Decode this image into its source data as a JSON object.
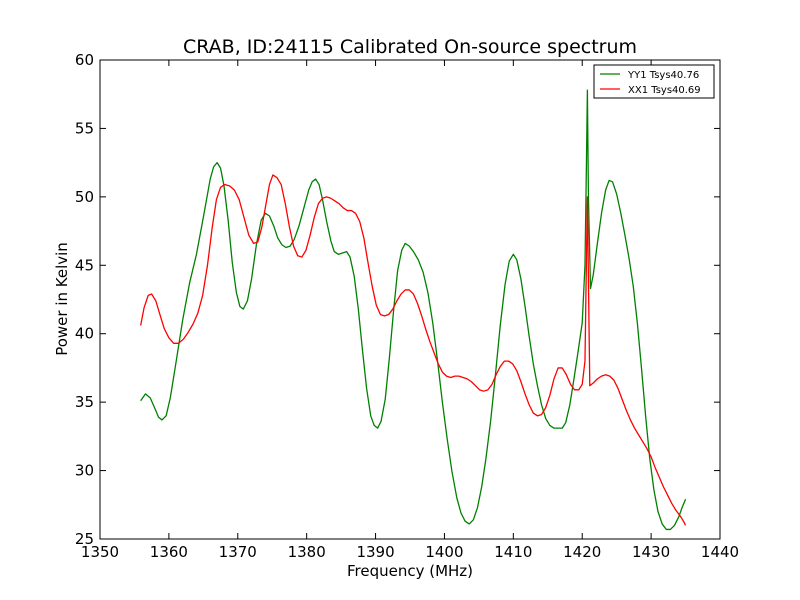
{
  "chart_data": {
    "type": "line",
    "title": "CRAB, ID:24115 Calibrated On-source spectrum",
    "xlabel": "Frequency (MHz)",
    "ylabel": "Power in Kelvin",
    "xlim": [
      1350,
      1440
    ],
    "ylim": [
      25,
      60
    ],
    "xticks": [
      "1350",
      "1360",
      "1370",
      "1380",
      "1390",
      "1400",
      "1410",
      "1420",
      "1430",
      "1440"
    ],
    "yticks": [
      "25",
      "30",
      "35",
      "40",
      "45",
      "50",
      "55",
      "60"
    ],
    "grid": false,
    "legend_position": "top-right",
    "series": [
      {
        "name": "YY1 Tsys40.76",
        "color": "#008000",
        "points": [
          [
            1355.9,
            35.1
          ],
          [
            1356.6,
            35.6
          ],
          [
            1357.3,
            35.3
          ],
          [
            1358.0,
            34.5
          ],
          [
            1358.5,
            33.9
          ],
          [
            1359.0,
            33.7
          ],
          [
            1359.6,
            34.0
          ],
          [
            1360.2,
            35.3
          ],
          [
            1361.0,
            37.8
          ],
          [
            1362.0,
            41.0
          ],
          [
            1363.0,
            43.7
          ],
          [
            1364.0,
            45.8
          ],
          [
            1365.0,
            48.5
          ],
          [
            1366.0,
            51.3
          ],
          [
            1366.5,
            52.2
          ],
          [
            1367.0,
            52.5
          ],
          [
            1367.5,
            52.1
          ],
          [
            1368.0,
            50.8
          ],
          [
            1368.6,
            48.3
          ],
          [
            1369.2,
            45.2
          ],
          [
            1369.8,
            43.0
          ],
          [
            1370.3,
            42.0
          ],
          [
            1370.8,
            41.8
          ],
          [
            1371.4,
            42.4
          ],
          [
            1372.0,
            44.0
          ],
          [
            1372.7,
            46.5
          ],
          [
            1373.4,
            48.3
          ],
          [
            1374.0,
            48.8
          ],
          [
            1374.6,
            48.6
          ],
          [
            1375.2,
            47.9
          ],
          [
            1375.8,
            47.0
          ],
          [
            1376.4,
            46.5
          ],
          [
            1377.0,
            46.3
          ],
          [
            1377.6,
            46.4
          ],
          [
            1378.2,
            46.9
          ],
          [
            1378.9,
            47.9
          ],
          [
            1379.6,
            49.2
          ],
          [
            1380.3,
            50.5
          ],
          [
            1380.8,
            51.1
          ],
          [
            1381.3,
            51.3
          ],
          [
            1381.8,
            50.9
          ],
          [
            1382.3,
            49.8
          ],
          [
            1382.9,
            48.2
          ],
          [
            1383.5,
            46.8
          ],
          [
            1384.0,
            46.0
          ],
          [
            1384.6,
            45.8
          ],
          [
            1385.2,
            45.9
          ],
          [
            1385.8,
            46.0
          ],
          [
            1386.3,
            45.6
          ],
          [
            1386.9,
            44.2
          ],
          [
            1387.5,
            41.8
          ],
          [
            1388.1,
            38.8
          ],
          [
            1388.7,
            36.0
          ],
          [
            1389.3,
            34.0
          ],
          [
            1389.8,
            33.3
          ],
          [
            1390.3,
            33.1
          ],
          [
            1390.8,
            33.6
          ],
          [
            1391.4,
            35.2
          ],
          [
            1392.0,
            38.2
          ],
          [
            1392.6,
            41.6
          ],
          [
            1393.2,
            44.6
          ],
          [
            1393.8,
            46.1
          ],
          [
            1394.3,
            46.6
          ],
          [
            1394.9,
            46.4
          ],
          [
            1395.5,
            46.0
          ],
          [
            1396.2,
            45.4
          ],
          [
            1396.9,
            44.5
          ],
          [
            1397.6,
            43.0
          ],
          [
            1398.3,
            40.8
          ],
          [
            1399.0,
            38.0
          ],
          [
            1399.7,
            35.0
          ],
          [
            1400.4,
            32.3
          ],
          [
            1401.1,
            29.9
          ],
          [
            1401.8,
            28.0
          ],
          [
            1402.4,
            26.9
          ],
          [
            1403.0,
            26.3
          ],
          [
            1403.6,
            26.1
          ],
          [
            1404.2,
            26.4
          ],
          [
            1404.8,
            27.3
          ],
          [
            1405.4,
            28.8
          ],
          [
            1406.0,
            30.8
          ],
          [
            1406.7,
            33.6
          ],
          [
            1407.4,
            37.0
          ],
          [
            1408.1,
            40.6
          ],
          [
            1408.8,
            43.6
          ],
          [
            1409.4,
            45.3
          ],
          [
            1410.0,
            45.8
          ],
          [
            1410.5,
            45.4
          ],
          [
            1411.1,
            44.0
          ],
          [
            1411.7,
            42.0
          ],
          [
            1412.3,
            39.8
          ],
          [
            1412.9,
            37.8
          ],
          [
            1413.5,
            36.2
          ],
          [
            1414.1,
            34.8
          ],
          [
            1414.7,
            33.8
          ],
          [
            1415.3,
            33.3
          ],
          [
            1415.9,
            33.1
          ],
          [
            1416.5,
            33.1
          ],
          [
            1417.1,
            33.1
          ],
          [
            1417.6,
            33.5
          ],
          [
            1418.2,
            34.8
          ],
          [
            1418.8,
            36.7
          ],
          [
            1419.4,
            38.7
          ],
          [
            1420.0,
            40.8
          ],
          [
            1420.4,
            45.0
          ],
          [
            1420.6,
            52.0
          ],
          [
            1420.75,
            57.8
          ],
          [
            1420.9,
            50.0
          ],
          [
            1421.2,
            43.3
          ],
          [
            1421.6,
            44.3
          ],
          [
            1422.2,
            46.6
          ],
          [
            1422.8,
            48.8
          ],
          [
            1423.4,
            50.5
          ],
          [
            1423.9,
            51.2
          ],
          [
            1424.4,
            51.1
          ],
          [
            1425.0,
            50.2
          ],
          [
            1425.6,
            48.8
          ],
          [
            1426.2,
            47.2
          ],
          [
            1426.8,
            45.5
          ],
          [
            1427.4,
            43.5
          ],
          [
            1428.0,
            40.8
          ],
          [
            1428.6,
            37.5
          ],
          [
            1429.2,
            34.0
          ],
          [
            1429.8,
            30.9
          ],
          [
            1430.4,
            28.6
          ],
          [
            1431.0,
            27.0
          ],
          [
            1431.6,
            26.1
          ],
          [
            1432.2,
            25.7
          ],
          [
            1432.8,
            25.7
          ],
          [
            1433.4,
            26.0
          ],
          [
            1434.0,
            26.6
          ],
          [
            1434.5,
            27.3
          ],
          [
            1435.0,
            27.9
          ]
        ]
      },
      {
        "name": "XX1 Tsys40.69",
        "color": "#ff0000",
        "points": [
          [
            1355.9,
            40.6
          ],
          [
            1356.4,
            41.9
          ],
          [
            1357.0,
            42.8
          ],
          [
            1357.5,
            42.9
          ],
          [
            1358.1,
            42.4
          ],
          [
            1358.7,
            41.4
          ],
          [
            1359.3,
            40.4
          ],
          [
            1360.0,
            39.7
          ],
          [
            1360.7,
            39.3
          ],
          [
            1361.4,
            39.3
          ],
          [
            1362.1,
            39.6
          ],
          [
            1362.8,
            40.1
          ],
          [
            1363.5,
            40.7
          ],
          [
            1364.2,
            41.5
          ],
          [
            1364.9,
            42.8
          ],
          [
            1365.6,
            45.0
          ],
          [
            1366.3,
            47.8
          ],
          [
            1366.9,
            49.8
          ],
          [
            1367.5,
            50.7
          ],
          [
            1368.1,
            50.9
          ],
          [
            1368.8,
            50.8
          ],
          [
            1369.5,
            50.5
          ],
          [
            1370.2,
            49.8
          ],
          [
            1370.9,
            48.5
          ],
          [
            1371.6,
            47.2
          ],
          [
            1372.3,
            46.6
          ],
          [
            1372.9,
            46.7
          ],
          [
            1373.5,
            47.8
          ],
          [
            1374.1,
            49.5
          ],
          [
            1374.6,
            50.9
          ],
          [
            1375.1,
            51.6
          ],
          [
            1375.7,
            51.4
          ],
          [
            1376.3,
            50.9
          ],
          [
            1376.9,
            49.5
          ],
          [
            1377.5,
            47.8
          ],
          [
            1378.1,
            46.4
          ],
          [
            1378.7,
            45.7
          ],
          [
            1379.3,
            45.6
          ],
          [
            1379.9,
            46.1
          ],
          [
            1380.5,
            47.2
          ],
          [
            1381.1,
            48.5
          ],
          [
            1381.7,
            49.5
          ],
          [
            1382.3,
            49.9
          ],
          [
            1382.9,
            50.0
          ],
          [
            1383.5,
            49.9
          ],
          [
            1384.1,
            49.7
          ],
          [
            1384.7,
            49.5
          ],
          [
            1385.3,
            49.2
          ],
          [
            1385.9,
            49.0
          ],
          [
            1386.5,
            49.0
          ],
          [
            1387.1,
            48.8
          ],
          [
            1387.7,
            48.2
          ],
          [
            1388.3,
            47.0
          ],
          [
            1388.9,
            45.2
          ],
          [
            1389.5,
            43.5
          ],
          [
            1390.1,
            42.1
          ],
          [
            1390.7,
            41.4
          ],
          [
            1391.3,
            41.3
          ],
          [
            1391.9,
            41.4
          ],
          [
            1392.5,
            41.8
          ],
          [
            1393.1,
            42.4
          ],
          [
            1393.7,
            42.9
          ],
          [
            1394.3,
            43.2
          ],
          [
            1394.9,
            43.2
          ],
          [
            1395.5,
            42.9
          ],
          [
            1396.1,
            42.2
          ],
          [
            1396.7,
            41.3
          ],
          [
            1397.3,
            40.3
          ],
          [
            1397.9,
            39.4
          ],
          [
            1398.5,
            38.6
          ],
          [
            1399.1,
            37.8
          ],
          [
            1399.7,
            37.2
          ],
          [
            1400.3,
            36.9
          ],
          [
            1400.9,
            36.8
          ],
          [
            1401.5,
            36.9
          ],
          [
            1402.1,
            36.9
          ],
          [
            1402.7,
            36.8
          ],
          [
            1403.3,
            36.7
          ],
          [
            1403.9,
            36.5
          ],
          [
            1404.5,
            36.2
          ],
          [
            1405.1,
            35.9
          ],
          [
            1405.7,
            35.8
          ],
          [
            1406.3,
            35.9
          ],
          [
            1406.9,
            36.3
          ],
          [
            1407.5,
            37.0
          ],
          [
            1408.1,
            37.6
          ],
          [
            1408.7,
            38.0
          ],
          [
            1409.3,
            38.0
          ],
          [
            1409.9,
            37.8
          ],
          [
            1410.5,
            37.3
          ],
          [
            1411.1,
            36.5
          ],
          [
            1411.7,
            35.6
          ],
          [
            1412.3,
            34.8
          ],
          [
            1412.9,
            34.2
          ],
          [
            1413.5,
            34.0
          ],
          [
            1414.1,
            34.1
          ],
          [
            1414.7,
            34.6
          ],
          [
            1415.3,
            35.5
          ],
          [
            1415.9,
            36.7
          ],
          [
            1416.5,
            37.5
          ],
          [
            1417.1,
            37.5
          ],
          [
            1417.7,
            37.0
          ],
          [
            1418.3,
            36.3
          ],
          [
            1418.9,
            35.9
          ],
          [
            1419.5,
            35.9
          ],
          [
            1420.0,
            36.3
          ],
          [
            1420.4,
            38.0
          ],
          [
            1420.6,
            45.0
          ],
          [
            1420.75,
            50.0
          ],
          [
            1420.9,
            44.0
          ],
          [
            1421.1,
            36.2
          ],
          [
            1421.6,
            36.4
          ],
          [
            1422.2,
            36.7
          ],
          [
            1422.8,
            36.9
          ],
          [
            1423.4,
            37.0
          ],
          [
            1424.0,
            36.9
          ],
          [
            1424.6,
            36.6
          ],
          [
            1425.2,
            36.0
          ],
          [
            1425.8,
            35.2
          ],
          [
            1426.4,
            34.4
          ],
          [
            1427.0,
            33.7
          ],
          [
            1427.6,
            33.1
          ],
          [
            1428.2,
            32.6
          ],
          [
            1428.8,
            32.1
          ],
          [
            1429.4,
            31.6
          ],
          [
            1430.0,
            31.0
          ],
          [
            1430.6,
            30.2
          ],
          [
            1431.2,
            29.5
          ],
          [
            1431.8,
            28.8
          ],
          [
            1432.4,
            28.2
          ],
          [
            1433.0,
            27.6
          ],
          [
            1433.6,
            27.1
          ],
          [
            1434.2,
            26.7
          ],
          [
            1434.7,
            26.3
          ],
          [
            1435.0,
            26.0
          ]
        ]
      }
    ]
  }
}
